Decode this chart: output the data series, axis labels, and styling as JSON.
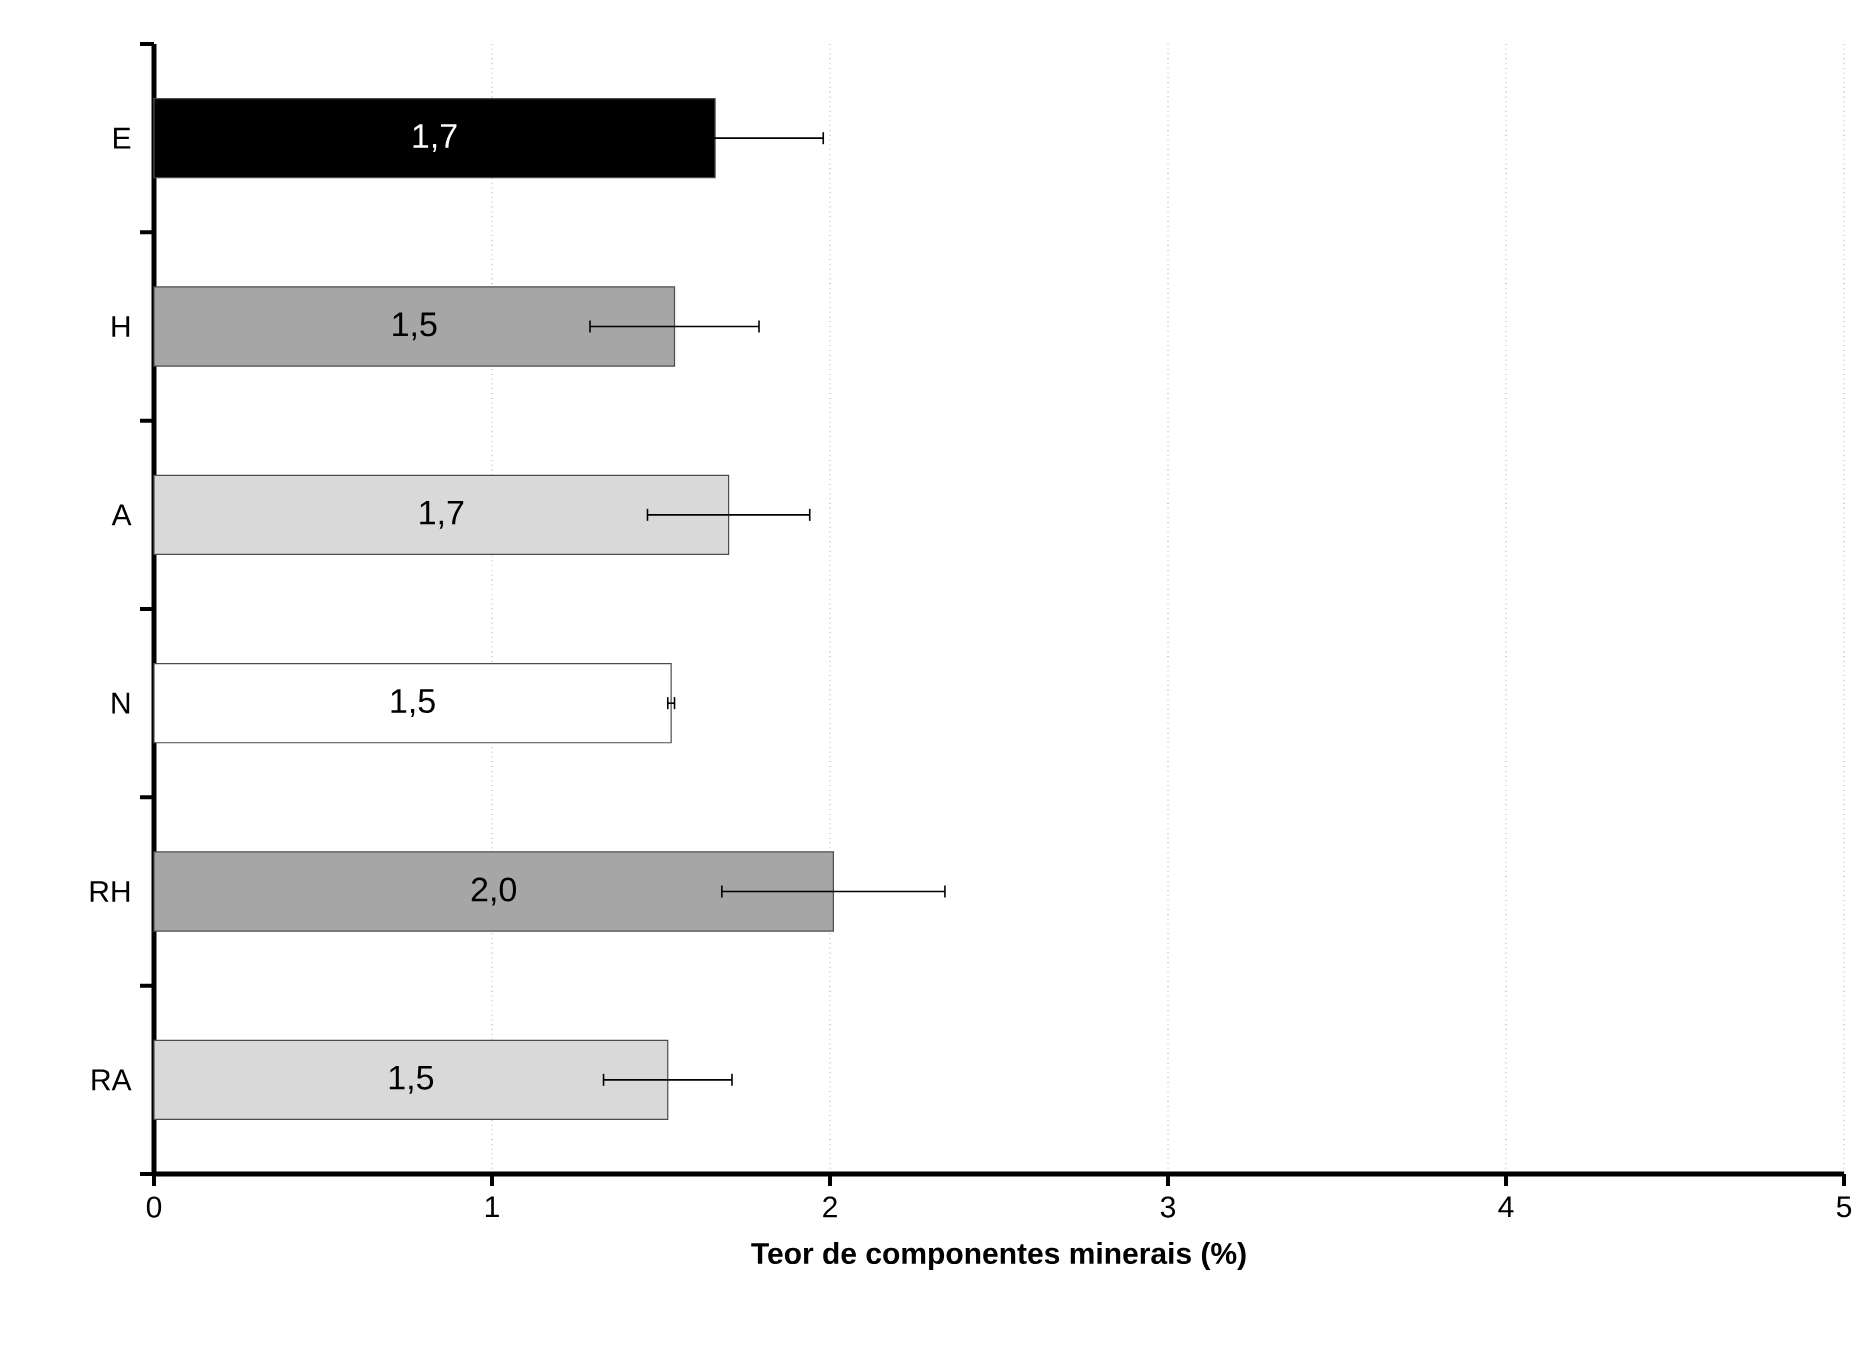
{
  "chart_data": {
    "type": "bar",
    "orientation": "horizontal",
    "xlabel": "Teor de componentes minerais (%)",
    "categories": [
      "E",
      "H",
      "A",
      "N",
      "RH",
      "RA"
    ],
    "values": [
      1.66,
      1.54,
      1.7,
      1.53,
      2.01,
      1.52
    ],
    "errors": [
      0.32,
      0.25,
      0.24,
      0.01,
      0.33,
      0.19
    ],
    "colors": [
      "#000000",
      "#a6a6a6",
      "#d9d9d9",
      "#ffffff",
      "#a6a6a6",
      "#d9d9d9"
    ],
    "value_labels": [
      "1,7",
      "1,5",
      "1,7",
      "1,5",
      "2,0",
      "1,5"
    ],
    "xlim": [
      0,
      5
    ],
    "xticks": [
      0,
      1,
      2,
      3,
      4,
      5
    ],
    "grid": "x"
  }
}
